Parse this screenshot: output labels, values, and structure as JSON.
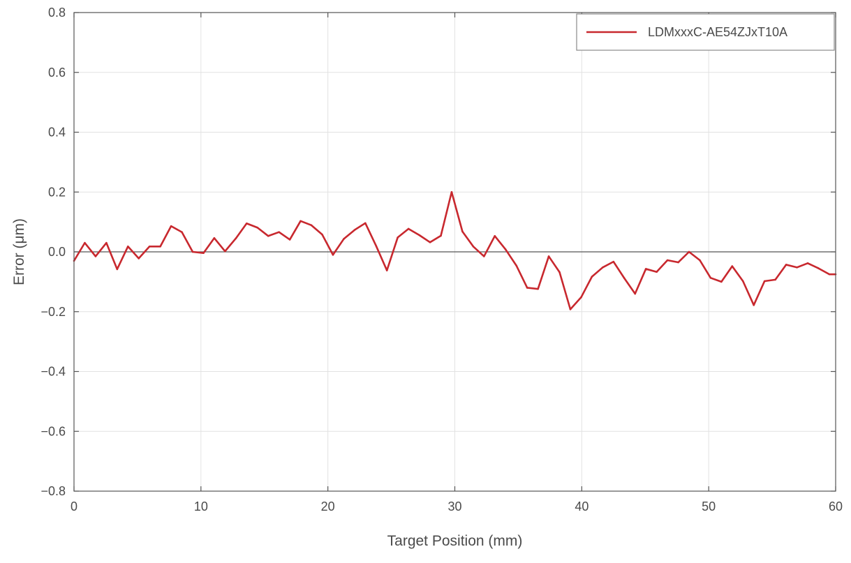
{
  "chart_data": {
    "type": "line",
    "xlabel": "Target Position (mm)",
    "ylabel": "Error (μm)",
    "xlim": [
      0,
      60
    ],
    "ylim": [
      -0.8,
      0.8
    ],
    "xticks": [
      0,
      10,
      20,
      30,
      40,
      50,
      60
    ],
    "yticks": [
      0.8,
      0.6,
      0.4,
      0.2,
      0.0,
      -0.2,
      -0.4,
      -0.6,
      -0.8
    ],
    "xtick_labels": [
      "0",
      "10",
      "20",
      "30",
      "40",
      "50",
      "60"
    ],
    "ytick_labels": [
      "0.8",
      "0.6",
      "0.4",
      "0.2",
      "0.0",
      "−0.2",
      "−0.4",
      "−0.6",
      "−0.8"
    ],
    "grid": true,
    "zero_line": true,
    "legend_position": "top-right",
    "series": [
      {
        "name": "LDMxxxC-AE54ZJxT10A",
        "color": "#c8282e",
        "x": [
          0,
          0.85,
          1.7,
          2.55,
          3.4,
          4.25,
          5.1,
          5.95,
          6.8,
          7.65,
          8.5,
          9.35,
          10.2,
          11.05,
          11.9,
          12.75,
          13.6,
          14.45,
          15.3,
          16.15,
          17.0,
          17.85,
          18.7,
          19.55,
          20.4,
          21.25,
          22.1,
          22.95,
          23.8,
          24.65,
          25.5,
          26.35,
          27.2,
          28.05,
          28.9,
          29.75,
          30.6,
          31.45,
          32.3,
          33.15,
          34.0,
          34.85,
          35.7,
          36.55,
          37.4,
          38.25,
          39.1,
          39.95,
          40.8,
          41.65,
          42.5,
          43.35,
          44.2,
          45.05,
          45.9,
          46.75,
          47.6,
          48.45,
          49.3,
          50.15,
          51.0,
          51.85,
          52.7,
          53.55,
          54.4,
          55.25,
          56.1,
          56.95,
          57.8,
          58.65,
          59.5,
          60.0
        ],
        "values": [
          -0.03,
          0.03,
          -0.015,
          0.03,
          -0.058,
          0.018,
          -0.022,
          0.018,
          0.018,
          0.086,
          0.066,
          0.0,
          -0.004,
          0.046,
          0.002,
          0.045,
          0.095,
          0.081,
          0.053,
          0.066,
          0.041,
          0.103,
          0.089,
          0.058,
          -0.01,
          0.043,
          0.073,
          0.096,
          0.02,
          -0.062,
          0.048,
          0.077,
          0.056,
          0.032,
          0.054,
          0.2,
          0.068,
          0.018,
          -0.015,
          0.053,
          0.008,
          -0.046,
          -0.12,
          -0.124,
          -0.015,
          -0.068,
          -0.192,
          -0.152,
          -0.083,
          -0.052,
          -0.033,
          -0.088,
          -0.14,
          -0.057,
          -0.067,
          -0.028,
          -0.035,
          0.0,
          -0.028,
          -0.087,
          -0.1,
          -0.048,
          -0.098,
          -0.178,
          -0.098,
          -0.093,
          -0.043,
          -0.052,
          -0.038,
          -0.055,
          -0.075,
          -0.075
        ]
      }
    ]
  }
}
